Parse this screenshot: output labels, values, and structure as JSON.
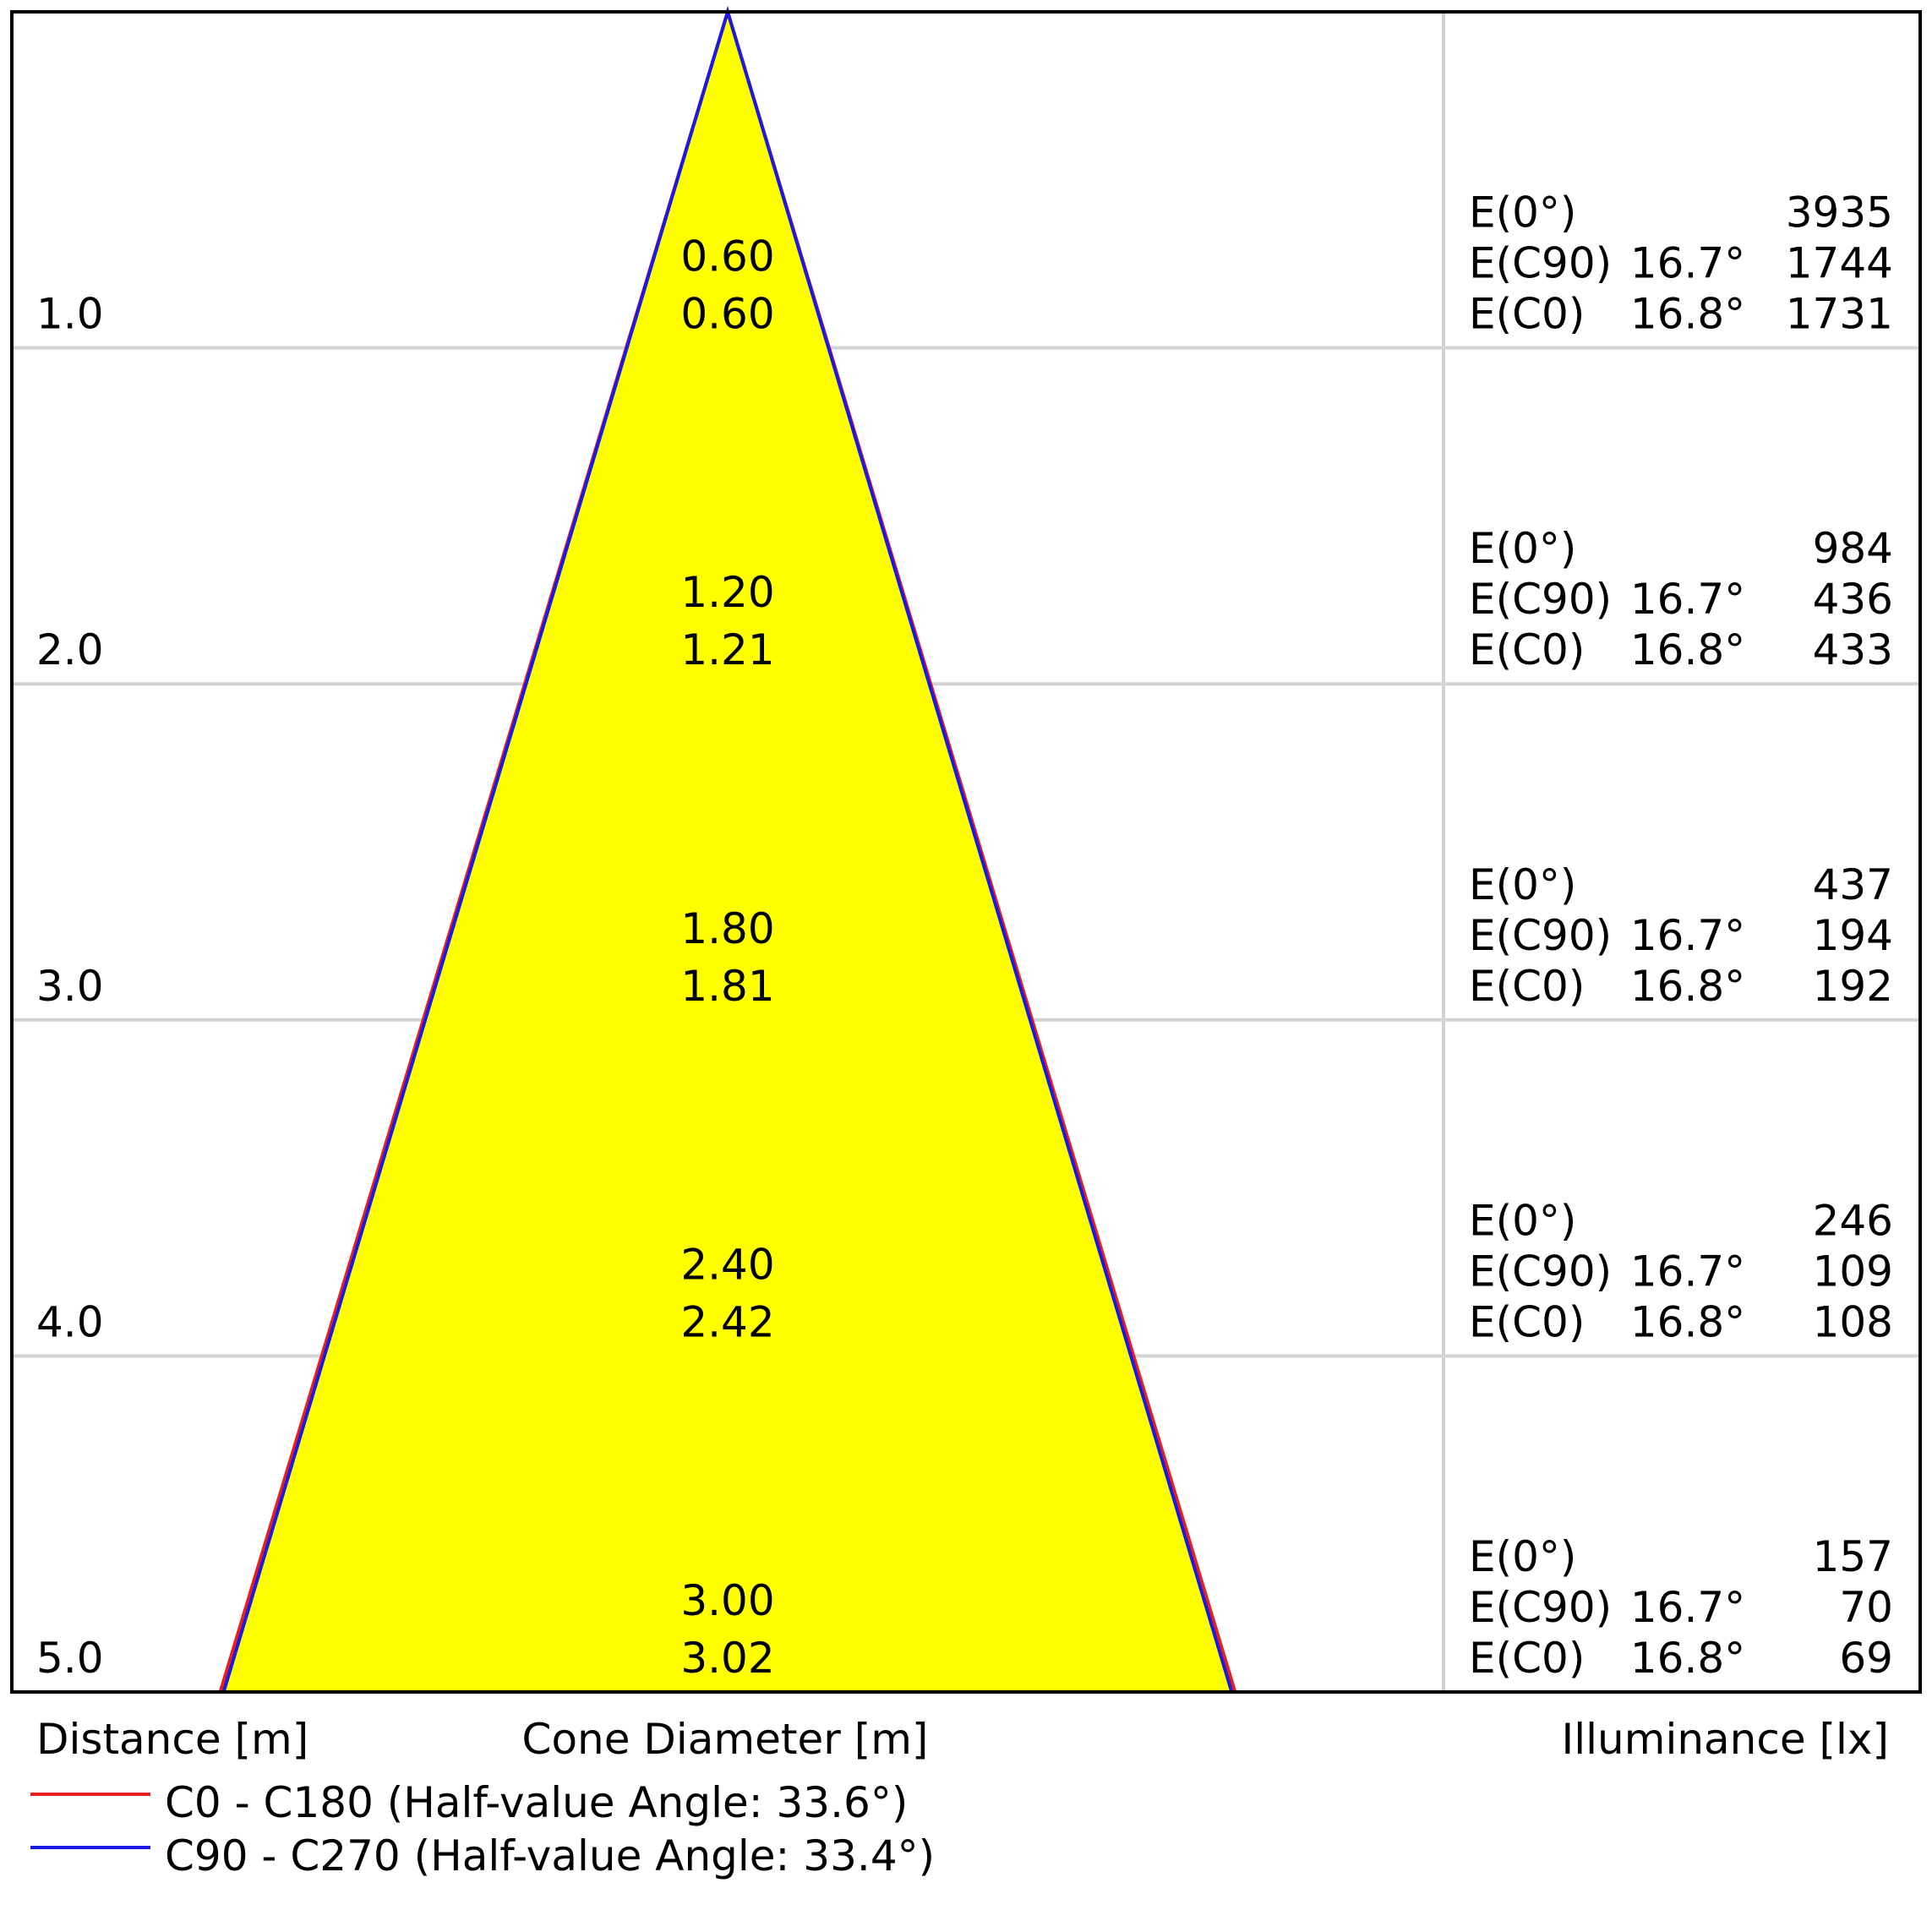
{
  "colors": {
    "cone_fill": "#ffff00",
    "c0_line": "#e8201c",
    "c90_line": "#1a1ae6",
    "grid": "#d3d3d3",
    "frame": "#000000"
  },
  "chart_data": {
    "type": "cone-diagram",
    "distance_unit": "m",
    "rows": [
      {
        "distance": "1.0",
        "diameter_c0": "0.60",
        "diameter_c90": "0.60",
        "illuminance": [
          {
            "label": "E(0°)",
            "angle": "",
            "value": "3935"
          },
          {
            "label": "E(C90)",
            "angle": "16.7°",
            "value": "1744"
          },
          {
            "label": "E(C0)",
            "angle": "16.8°",
            "value": "1731"
          }
        ]
      },
      {
        "distance": "2.0",
        "diameter_c0": "1.20",
        "diameter_c90": "1.21",
        "illuminance": [
          {
            "label": "E(0°)",
            "angle": "",
            "value": "984"
          },
          {
            "label": "E(C90)",
            "angle": "16.7°",
            "value": "436"
          },
          {
            "label": "E(C0)",
            "angle": "16.8°",
            "value": "433"
          }
        ]
      },
      {
        "distance": "3.0",
        "diameter_c0": "1.80",
        "diameter_c90": "1.81",
        "illuminance": [
          {
            "label": "E(0°)",
            "angle": "",
            "value": "437"
          },
          {
            "label": "E(C90)",
            "angle": "16.7°",
            "value": "194"
          },
          {
            "label": "E(C0)",
            "angle": "16.8°",
            "value": "192"
          }
        ]
      },
      {
        "distance": "4.0",
        "diameter_c0": "2.40",
        "diameter_c90": "2.42",
        "illuminance": [
          {
            "label": "E(0°)",
            "angle": "",
            "value": "246"
          },
          {
            "label": "E(C90)",
            "angle": "16.7°",
            "value": "109"
          },
          {
            "label": "E(C0)",
            "angle": "16.8°",
            "value": "108"
          }
        ]
      },
      {
        "distance": "5.0",
        "diameter_c0": "3.00",
        "diameter_c90": "3.02",
        "illuminance": [
          {
            "label": "E(0°)",
            "angle": "",
            "value": "157"
          },
          {
            "label": "E(C90)",
            "angle": "16.7°",
            "value": "70"
          },
          {
            "label": "E(C0)",
            "angle": "16.8°",
            "value": "69"
          }
        ]
      }
    ],
    "cone": {
      "max_distance": 5.0,
      "max_diameter_c0": 3.0,
      "max_diameter_c90": 3.02
    },
    "headers": {
      "distance": "Distance [m]",
      "diameter": "Cone Diameter [m]",
      "illuminance": "Illuminance [lx]"
    },
    "legend": [
      {
        "key": "c0",
        "label": "C0 - C180 (Half-value Angle: 33.6°)"
      },
      {
        "key": "c90",
        "label": "C90 - C270 (Half-value Angle: 33.4°)"
      }
    ]
  }
}
